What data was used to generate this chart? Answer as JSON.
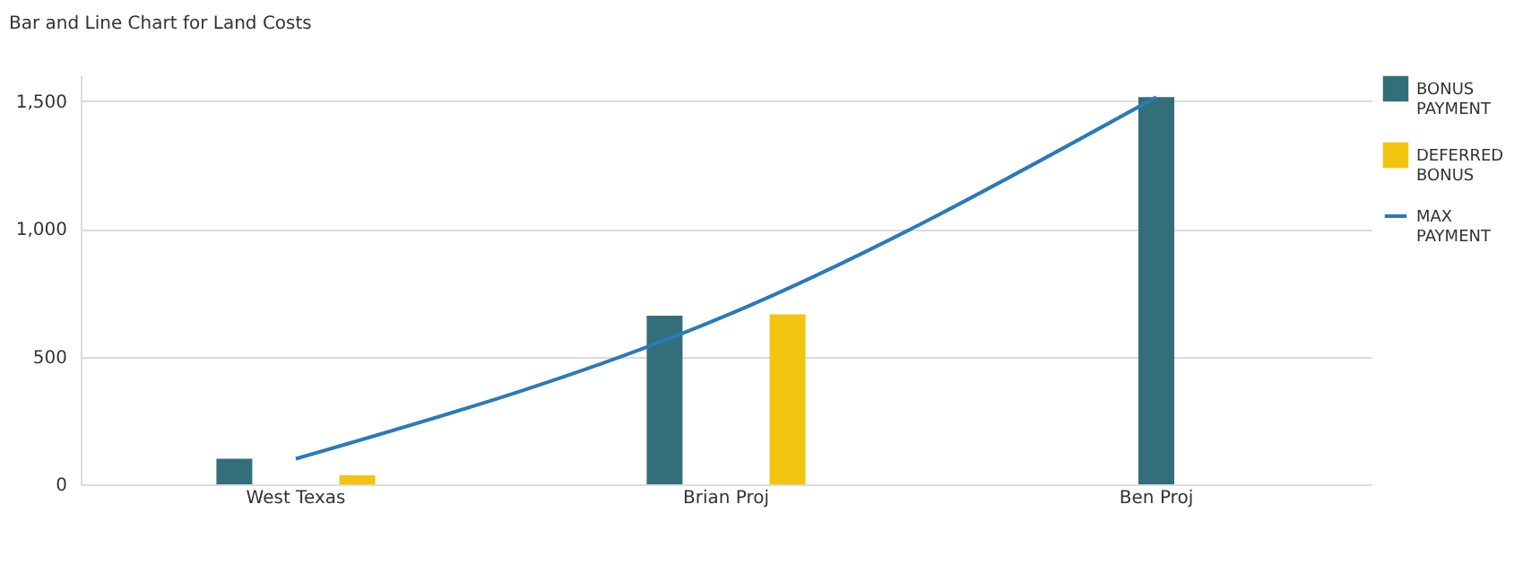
{
  "chart_data": {
    "type": "bar",
    "title": "Bar and Line Chart for Land Costs",
    "categories": [
      "West Texas",
      "Brian Proj",
      "Ben Proj"
    ],
    "series": [
      {
        "name": "BONUS PAYMENT",
        "color": "#336e7b",
        "values": [
          100,
          660,
          1515
        ]
      },
      {
        "name": "DEFERRED BONUS",
        "color": "#f1c40f",
        "values": [
          35,
          665,
          null
        ]
      },
      {
        "name": "MAX PAYMENT",
        "type": "line",
        "color": "#2a7ab9",
        "values": [
          100,
          660,
          1515
        ]
      }
    ],
    "ylim": [
      0,
      1600
    ],
    "yticks": [
      0,
      500,
      {
        "value": 1000,
        "label": "1,000"
      },
      {
        "value": 1500,
        "label": "1,500"
      }
    ],
    "grid": "y",
    "legend": "right"
  }
}
